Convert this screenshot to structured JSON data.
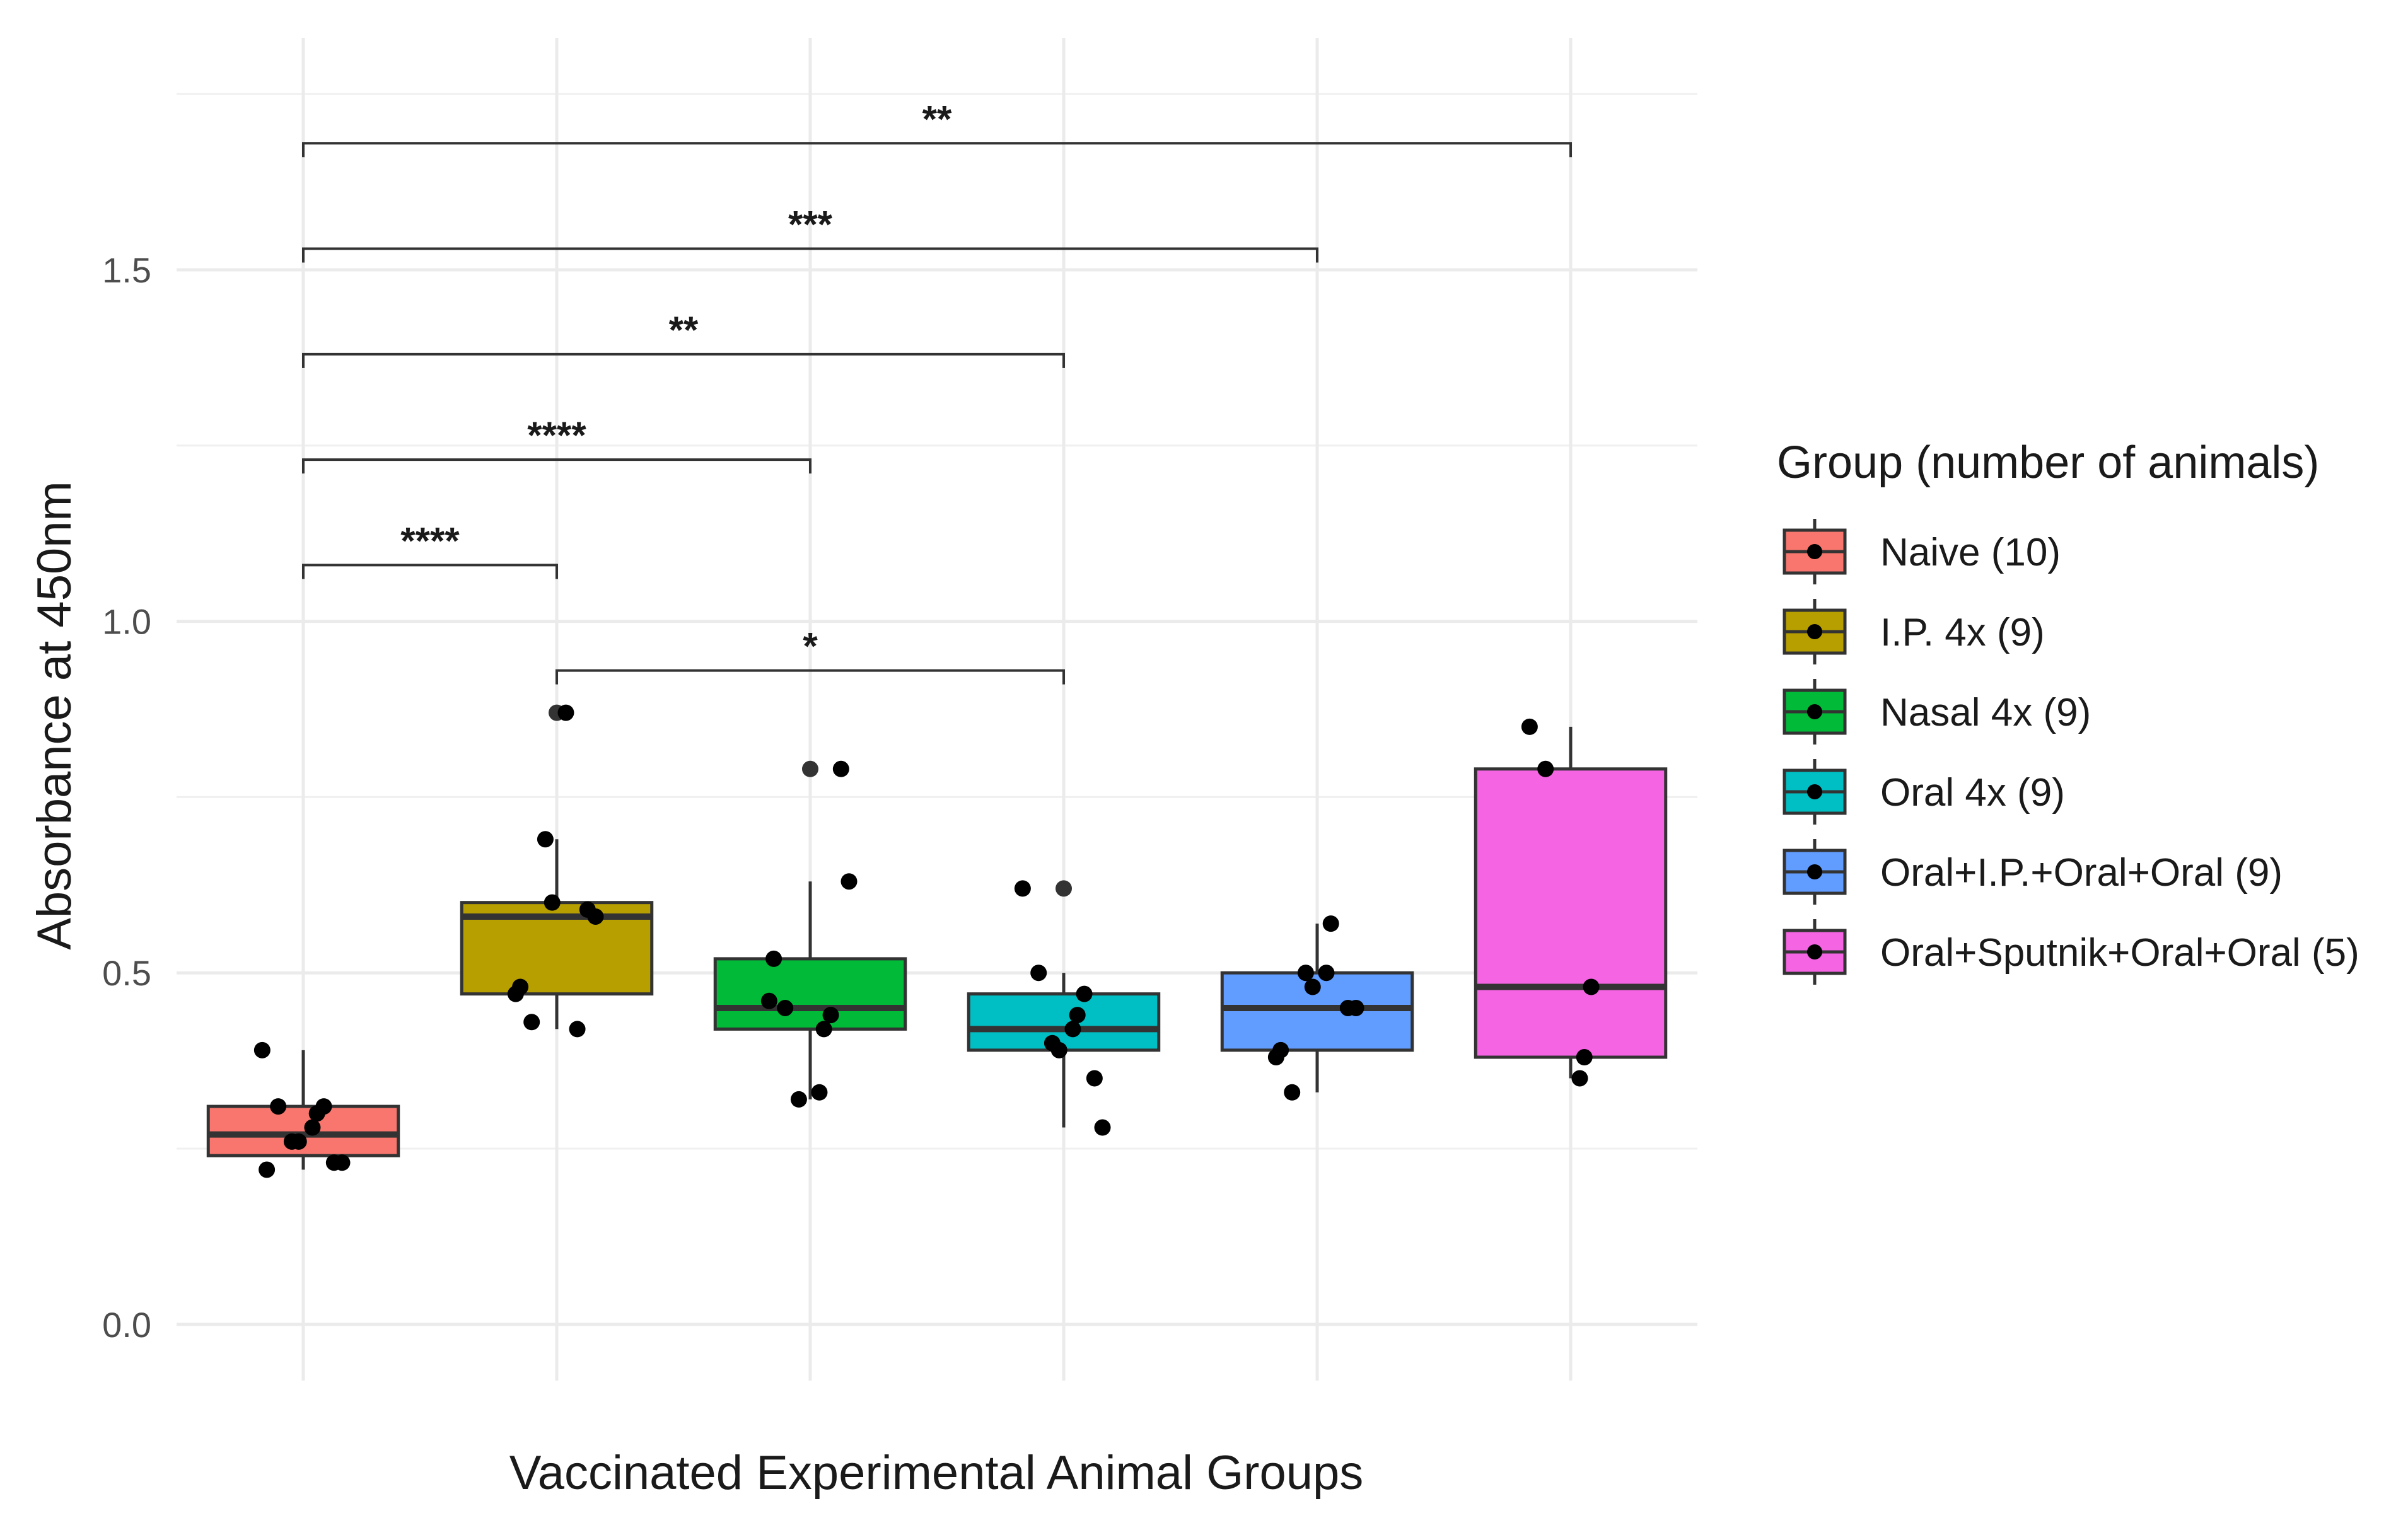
{
  "chart_data": {
    "type": "box",
    "title": "",
    "xlabel": "Vaccinated Experimental Animal Groups",
    "ylabel": "Absorbance at 450nm",
    "ylim": [
      -0.08,
      1.83
    ],
    "yticks": [
      0.0,
      0.5,
      1.0,
      1.5
    ],
    "ytick_labels": [
      "0.0",
      "0.5",
      "1.0",
      "1.5"
    ],
    "grid": true,
    "legend_title": "Group (number of animals)",
    "legend_position": "right",
    "groups": [
      {
        "name": "Naive (10)",
        "color": "#F8766D",
        "box": {
          "min": 0.22,
          "q1": 0.24,
          "median": 0.27,
          "q3": 0.31,
          "max": 0.39
        },
        "outliers": [],
        "points": [
          0.22,
          0.23,
          0.23,
          0.26,
          0.26,
          0.28,
          0.3,
          0.31,
          0.31,
          0.39
        ]
      },
      {
        "name": "I.P. 4x (9)",
        "color": "#B79F00",
        "box": {
          "min": 0.42,
          "q1": 0.47,
          "median": 0.58,
          "q3": 0.6,
          "max": 0.69
        },
        "outliers": [
          0.87
        ],
        "points": [
          0.42,
          0.43,
          0.47,
          0.48,
          0.58,
          0.59,
          0.6,
          0.69,
          0.87
        ]
      },
      {
        "name": "Nasal 4x (9)",
        "color": "#00BA38",
        "box": {
          "min": 0.32,
          "q1": 0.42,
          "median": 0.45,
          "q3": 0.52,
          "max": 0.63
        },
        "outliers": [
          0.79
        ],
        "points": [
          0.32,
          0.33,
          0.42,
          0.44,
          0.45,
          0.46,
          0.52,
          0.63,
          0.79
        ]
      },
      {
        "name": "Oral 4x (9)",
        "color": "#00BFC4",
        "box": {
          "min": 0.28,
          "q1": 0.39,
          "median": 0.42,
          "q3": 0.47,
          "max": 0.5
        },
        "outliers": [
          0.62
        ],
        "points": [
          0.28,
          0.35,
          0.39,
          0.4,
          0.42,
          0.44,
          0.47,
          0.5,
          0.62
        ]
      },
      {
        "name": "Oral+I.P.+Oral+Oral (9)",
        "color": "#619CFF",
        "box": {
          "min": 0.33,
          "q1": 0.39,
          "median": 0.45,
          "q3": 0.5,
          "max": 0.57
        },
        "outliers": [],
        "points": [
          0.33,
          0.38,
          0.39,
          0.45,
          0.45,
          0.48,
          0.5,
          0.5,
          0.57
        ]
      },
      {
        "name": "Oral+Sputnik+Oral+Oral (5)",
        "color": "#F564E3",
        "box": {
          "min": 0.35,
          "q1": 0.38,
          "median": 0.48,
          "q3": 0.79,
          "max": 0.85
        },
        "outliers": [],
        "points": [
          0.35,
          0.38,
          0.48,
          0.79,
          0.85
        ]
      }
    ],
    "significance": [
      {
        "from": 0,
        "to": 1,
        "y": 1.08,
        "label": "****"
      },
      {
        "from": 0,
        "to": 2,
        "y": 1.23,
        "label": "****"
      },
      {
        "from": 0,
        "to": 3,
        "y": 1.38,
        "label": "**"
      },
      {
        "from": 0,
        "to": 4,
        "y": 1.53,
        "label": "***"
      },
      {
        "from": 0,
        "to": 5,
        "y": 1.68,
        "label": "**"
      },
      {
        "from": 1,
        "to": 3,
        "y": 0.93,
        "label": "*"
      }
    ]
  }
}
